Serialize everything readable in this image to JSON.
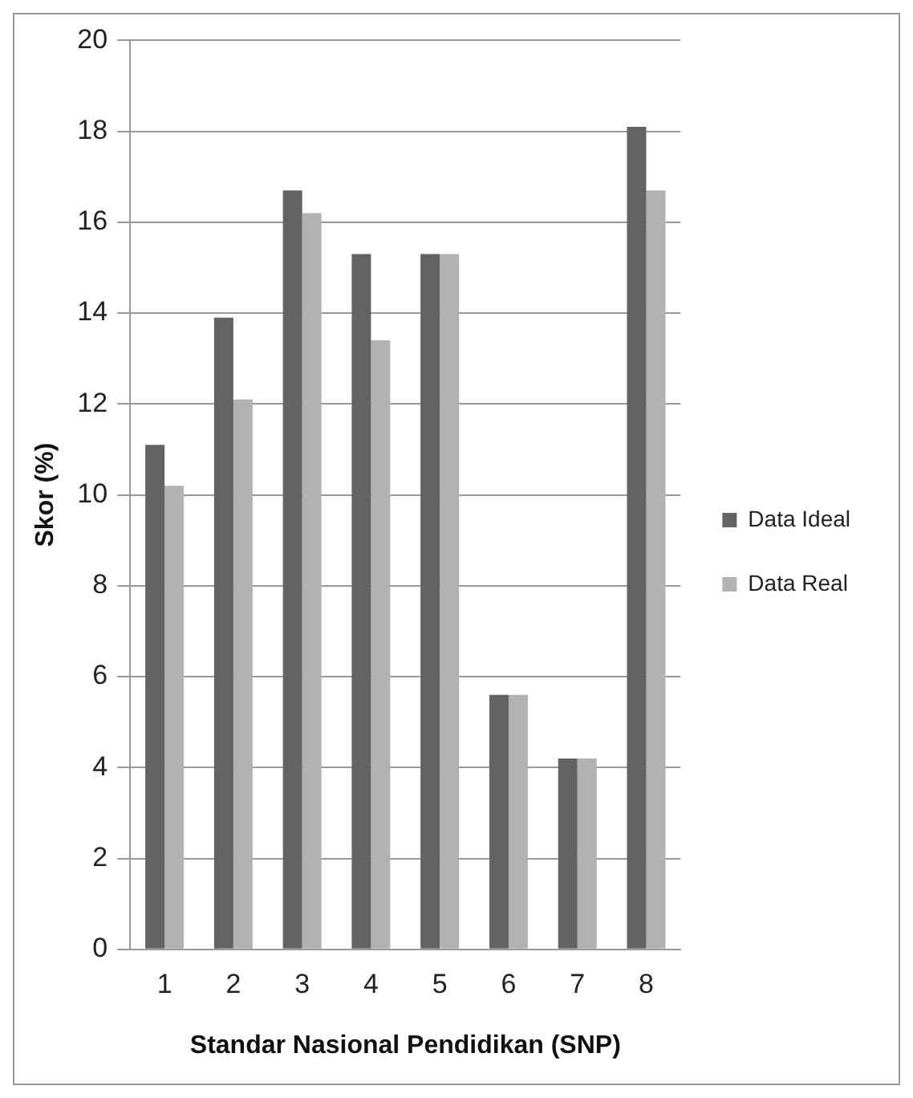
{
  "chart_data": {
    "type": "bar",
    "xlabel": "Standar Nasional Pendidikan (SNP)",
    "ylabel": "Skor (%)",
    "categories": [
      "1",
      "2",
      "3",
      "4",
      "5",
      "6",
      "7",
      "8"
    ],
    "series": [
      {
        "name": "Data Ideal",
        "color": "#636363",
        "values": [
          11.1,
          13.9,
          16.7,
          15.3,
          15.3,
          5.6,
          4.2,
          18.1
        ]
      },
      {
        "name": "Data Real",
        "color": "#b2b2b2",
        "values": [
          10.2,
          12.1,
          16.2,
          13.4,
          15.3,
          5.6,
          4.2,
          16.7
        ]
      }
    ],
    "ylim": [
      0,
      20
    ],
    "yticks": [
      0,
      2,
      4,
      6,
      8,
      10,
      12,
      14,
      16,
      18,
      20
    ],
    "grid": "y",
    "legend": "right"
  }
}
